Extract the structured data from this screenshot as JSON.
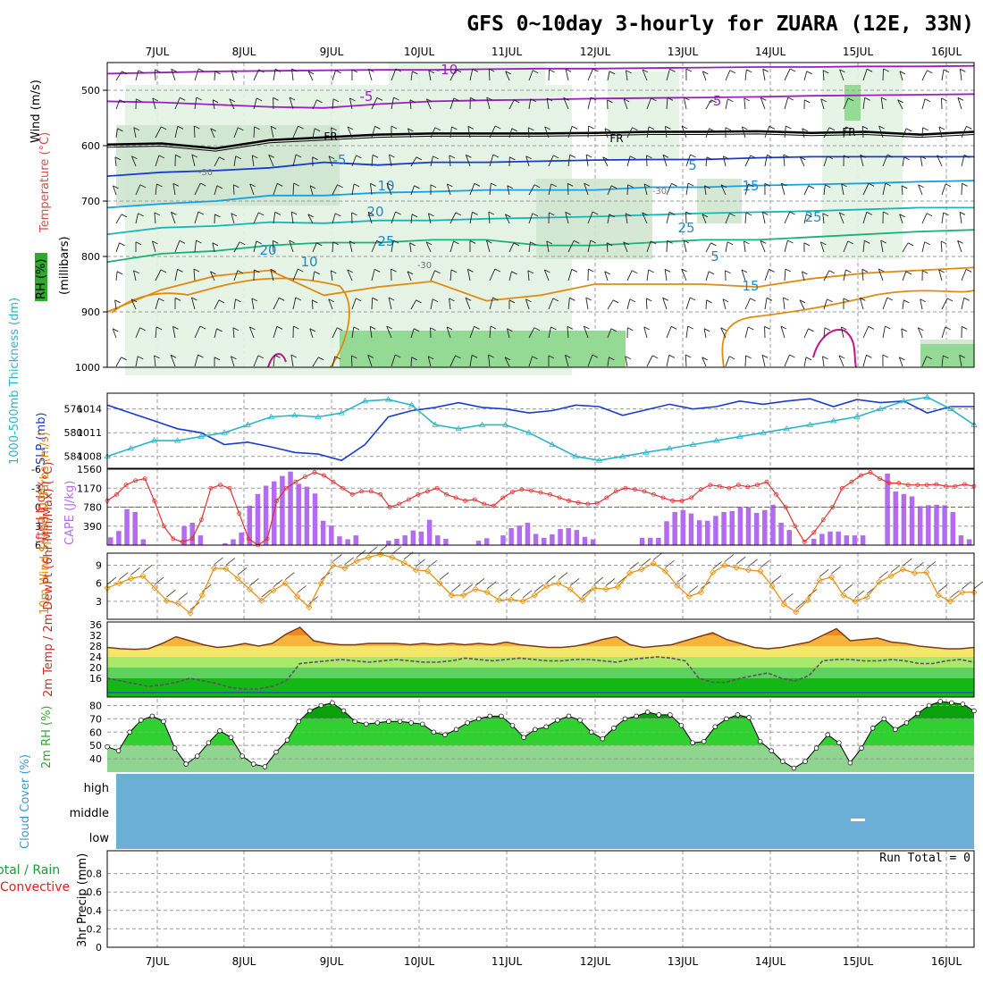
{
  "title": "GFS 0~10day 3-hourly for ZUARA (12E, 33N)",
  "dates": [
    "7JUL",
    "8JUL",
    "9JUL",
    "10JUL",
    "11JUL",
    "12JUL",
    "13JUL",
    "14JUL",
    "15JUL",
    "16JUL"
  ],
  "colors": {
    "rh_green": "#7fd67f",
    "temp_red": "#e03030",
    "purple": "#b36bf0",
    "orange": "#e88a00",
    "blue": "#1a3ccc",
    "cyan": "#2ab5c8",
    "cloud": "#6baed6"
  },
  "chart_data": [
    {
      "type": "heatmap",
      "name": "upper-air",
      "ylabel": "(millibars)",
      "axis_labels": {
        "wind": "Wind (m/s)",
        "temperature": "Temperature (°C)",
        "rh": "RH (%)"
      },
      "yticks": [
        500,
        600,
        700,
        800,
        900,
        1000
      ],
      "ylim": [
        450,
        1000
      ],
      "isotherm_labels": [
        "-10",
        "-5",
        "FR",
        "FR",
        "FR",
        "-5",
        "-5",
        "5",
        "10",
        "15",
        "20",
        "25",
        "25",
        "5",
        "10",
        "15",
        "20",
        "25",
        "-30",
        "-30",
        "-30"
      ],
      "isotherms": [
        {
          "label": "-10",
          "color": "#9b1fbf",
          "p": [
            470,
            468,
            466,
            465,
            464,
            463,
            463,
            462,
            461,
            461,
            460,
            459,
            458,
            458,
            457,
            457,
            456
          ]
        },
        {
          "label": "-5",
          "color": "#9b1fbf",
          "p": [
            520,
            522,
            526,
            530,
            532,
            525,
            520,
            518,
            517,
            515,
            514,
            513,
            512,
            510,
            509,
            508,
            507
          ]
        },
        {
          "label": "FR",
          "color": "#000000",
          "p": [
            598,
            596,
            605,
            590,
            585,
            580,
            578,
            578,
            578,
            577,
            575,
            575,
            574,
            577,
            575,
            580,
            575
          ]
        },
        {
          "label": "-5",
          "color": "#1a3ccc",
          "p": [
            655,
            648,
            645,
            640,
            630,
            635,
            630,
            630,
            628,
            626,
            625,
            625,
            622,
            620,
            620,
            620,
            620
          ]
        },
        {
          "label": "10",
          "color": "#1aa0e0",
          "p": [
            712,
            705,
            700,
            690,
            690,
            685,
            683,
            680,
            680,
            680,
            675,
            675,
            672,
            670,
            668,
            665,
            663
          ]
        },
        {
          "label": "15",
          "color": "#1ab5b5",
          "p": [
            760,
            748,
            745,
            738,
            740,
            735,
            735,
            732,
            730,
            728,
            725,
            722,
            720,
            718,
            715,
            712,
            712
          ]
        },
        {
          "label": "20",
          "color": "#1ab07a",
          "p": [
            810,
            795,
            790,
            780,
            775,
            775,
            770,
            770,
            780,
            780,
            775,
            770,
            770,
            765,
            760,
            755,
            752
          ]
        },
        {
          "label": "25",
          "color": "#e08a10",
          "p": [
            900,
            860,
            835,
            825,
            870,
            855,
            845,
            880,
            870,
            850,
            850,
            850,
            855,
            840,
            830,
            825,
            820
          ]
        }
      ]
    },
    {
      "type": "line",
      "name": "thickness-slp",
      "y_left_label": "1000-500mb Thickness (dm)",
      "y_right_label": "SLP (mb)",
      "yticks_left": [
        576,
        580,
        584
      ],
      "yticks_right": [
        1008,
        1011,
        1014
      ],
      "ylim": [
        1006.5,
        1016
      ],
      "series": [
        {
          "name": "SLP",
          "color": "#1a3ccc",
          "values": [
            1014.5,
            1013.5,
            1012.5,
            1011.5,
            1011.0,
            1009.5,
            1009.8,
            1009.2,
            1008.5,
            1008.3,
            1007.5,
            1009.5,
            1013,
            1013.8,
            1014.2,
            1014.8,
            1014.2,
            1014.0,
            1013.5,
            1013.8,
            1014.5,
            1014.3,
            1013.2,
            1013.9,
            1014.6,
            1014.0,
            1014.3,
            1015.0,
            1014.6,
            1015.0,
            1015.3,
            1014.3,
            1015.2,
            1014.8,
            1015.0,
            1013.5,
            1014.3,
            1014.3
          ]
        },
        {
          "name": "Thickness",
          "color": "#2ab5c8",
          "values": [
            1008,
            1009,
            1010,
            1010,
            1010.5,
            1011,
            1012,
            1013,
            1013.2,
            1013,
            1013.5,
            1015,
            1015.2,
            1014.5,
            1012,
            1011.5,
            1012,
            1012,
            1011,
            1009.5,
            1008,
            1007.5,
            1008,
            1008.5,
            1009,
            1009.5,
            1010,
            1010.5,
            1011,
            1011.5,
            1012,
            1012.5,
            1013,
            1014,
            1015,
            1015.5,
            1014,
            1012
          ]
        }
      ]
    },
    {
      "type": "bar",
      "name": "cape-li",
      "y_left_label": "Lifted Index",
      "y_right_label": "CAPE (J/kg)",
      "yticks_left": [
        "6",
        "3",
        "0",
        "-3",
        "-6"
      ],
      "yticks_right": [
        390,
        780,
        1170,
        1560
      ],
      "ylim": [
        0,
        1560
      ],
      "cape": [
        160,
        290,
        740,
        680,
        120,
        0,
        0,
        0,
        0,
        390,
        460,
        200,
        0,
        0,
        40,
        120,
        260,
        810,
        1050,
        1220,
        1310,
        1420,
        1510,
        1260,
        1200,
        1060,
        500,
        400,
        180,
        120,
        200,
        0,
        0,
        0,
        90,
        130,
        200,
        300,
        280,
        520,
        200,
        130,
        0,
        0,
        0,
        90,
        140,
        0,
        200,
        350,
        400,
        460,
        230,
        150,
        220,
        330,
        350,
        310,
        170,
        120,
        0,
        0,
        0,
        0,
        0,
        150,
        150,
        150,
        490,
        680,
        720,
        650,
        510,
        500,
        600,
        680,
        700,
        770,
        780,
        660,
        720,
        830,
        460,
        310,
        0,
        0,
        130,
        230,
        280,
        280,
        200,
        200,
        200,
        0,
        0,
        1470,
        1100,
        1050,
        1000,
        800,
        820,
        830,
        820,
        680,
        200,
        120
      ],
      "li": [
        -1,
        -2,
        -3.5,
        -4.2,
        -4.5,
        -1,
        3,
        5,
        5.5,
        5,
        2,
        -3,
        -3.5,
        -3,
        1,
        5,
        6,
        5,
        -1,
        -3,
        -4,
        -4.8,
        -5.5,
        -5,
        -4,
        -3,
        -2,
        -2.5,
        -2.5,
        -2,
        0,
        -0.5,
        -1.2,
        -2.0,
        -2.5,
        -3.0,
        -2.0,
        -1.5,
        -1.0,
        -1.2,
        -0.5,
        -0.2,
        -1.5,
        -2.4,
        -2.8,
        -2.6,
        -2.3,
        -2.0,
        -1.5,
        -1.0,
        -0.7,
        -0.5,
        -0.6,
        -1.5,
        -2.5,
        -3.0,
        -2.8,
        -2.5,
        -2.0,
        -1.5,
        -1.0,
        -1.0,
        -1.5,
        -2.8,
        -3.5,
        -3.3,
        -3.0,
        -3.5,
        -3.2,
        -3.5,
        -4.0,
        -2.0,
        0,
        3,
        5.5,
        4,
        2,
        0,
        -3,
        -4,
        -5,
        -5.5,
        -4.5,
        -3.8,
        -3.8,
        -3.5,
        -3.5,
        -3.5,
        -3.6,
        -3.3,
        -3.3,
        -3.6,
        -3.3
      ]
    },
    {
      "type": "line",
      "name": "wind10m",
      "ylabel": "10m Wind Speed & Barbs (m/s)",
      "yticks": [
        3,
        6,
        9
      ],
      "ylim": [
        0,
        11
      ],
      "values": [
        5.2,
        6.0,
        6.8,
        7.2,
        5.2,
        3.1,
        2.6,
        1.0,
        4.0,
        8.5,
        8.4,
        6.8,
        5.0,
        3.1,
        4.8,
        6.0,
        3.8,
        2.0,
        6.0,
        9.0,
        8.5,
        9.7,
        10.3,
        10.8,
        10.3,
        9.4,
        8.2,
        8.0,
        6.0,
        4.0,
        4.0,
        5.0,
        4.5,
        3.2,
        3.3,
        3.0,
        4.0,
        5.5,
        6.0,
        5.0,
        3.2,
        5.2,
        5.0,
        5.4,
        7.7,
        8.3,
        9.3,
        8.0,
        5.6,
        3.8,
        4.5,
        7.8,
        9.0,
        8.6,
        8.2,
        8.0,
        5.5,
        2.5,
        1.2,
        3.2,
        6.5,
        7.0,
        4.0,
        3.0,
        3.7,
        6.2,
        7.2,
        8.3,
        7.7,
        7.8,
        4.0,
        3.0,
        4.5,
        4.5
      ]
    },
    {
      "type": "area",
      "name": "temp2m",
      "ylabel": "2m Temp / 2m DewPt (6hr Min/Max) (°C)",
      "yticks": [
        "16",
        "20",
        "24",
        "28",
        "32",
        "36"
      ],
      "ylim": [
        9,
        37
      ],
      "temp": [
        27.5,
        27,
        26.8,
        27,
        29,
        31.5,
        30,
        28.5,
        27.5,
        28,
        29,
        28,
        29,
        32.5,
        35,
        30,
        29,
        28.5,
        28.5,
        29,
        29,
        29,
        28.5,
        29,
        28.5,
        29,
        28.5,
        29,
        28.5,
        29.5,
        28.5,
        28,
        27.5,
        27.5,
        28,
        29,
        30.5,
        31.5,
        28.5,
        27.5,
        28,
        28.5,
        30,
        31.5,
        33,
        30.5,
        29,
        27.5,
        27,
        27.5,
        28.5,
        29.5,
        32,
        34.5,
        30,
        30.5,
        31,
        29.5,
        29,
        28,
        27.5,
        27,
        27,
        27.5
      ],
      "dewpt": [
        16,
        15,
        14,
        13,
        13.5,
        14.5,
        16,
        15,
        14,
        12.5,
        12,
        12,
        13,
        15,
        21.5,
        22,
        22.5,
        23,
        22.5,
        22,
        22.5,
        23,
        22.5,
        22,
        22,
        22.5,
        23.5,
        23,
        22.5,
        23,
        23.5,
        23,
        22.5,
        22.5,
        23,
        23,
        22.5,
        22,
        23,
        23.5,
        24,
        23.5,
        22.5,
        16,
        14.5,
        14.5,
        16,
        17,
        18,
        16,
        15,
        17,
        22.5,
        23,
        23,
        22.5,
        22.5,
        23,
        22.5,
        21.5,
        21.5,
        22.5,
        23,
        22
      ]
    },
    {
      "type": "area",
      "name": "rh2m",
      "ylabel": "2m RH (%)",
      "yticks": [
        "40",
        "50",
        "60",
        "70",
        "80"
      ],
      "ylim": [
        30,
        85
      ],
      "values": [
        49,
        46,
        60,
        69,
        72,
        68,
        48,
        36,
        42,
        52,
        61,
        56,
        42,
        36,
        34,
        45,
        54,
        68,
        76,
        80,
        82,
        76,
        68,
        66,
        67,
        68,
        68,
        67,
        66,
        60,
        58,
        62,
        67,
        70,
        72,
        72,
        65,
        56,
        62,
        64,
        69,
        72,
        69,
        60,
        55,
        63,
        70,
        72,
        75,
        73,
        73,
        65,
        52,
        53,
        64,
        70,
        73,
        71,
        53,
        46,
        38,
        33,
        38,
        48,
        58,
        52,
        37,
        48,
        63,
        70,
        62,
        67,
        74,
        80,
        83,
        82,
        81,
        76
      ]
    },
    {
      "type": "table",
      "name": "cloud",
      "ylabel": "Cloud Cover (%)",
      "levels": [
        "high",
        "middle",
        "low"
      ]
    },
    {
      "type": "bar",
      "name": "precip",
      "ylabel": "3hr Precip (mm)",
      "legend_left": "Total / Rain",
      "legend_left2": "Convective",
      "run_total": "Run Total = 0",
      "yticks": [
        "0",
        "0.2",
        "0.4",
        "0.6",
        "0.8"
      ],
      "ylim": [
        0,
        1
      ],
      "values": []
    }
  ]
}
